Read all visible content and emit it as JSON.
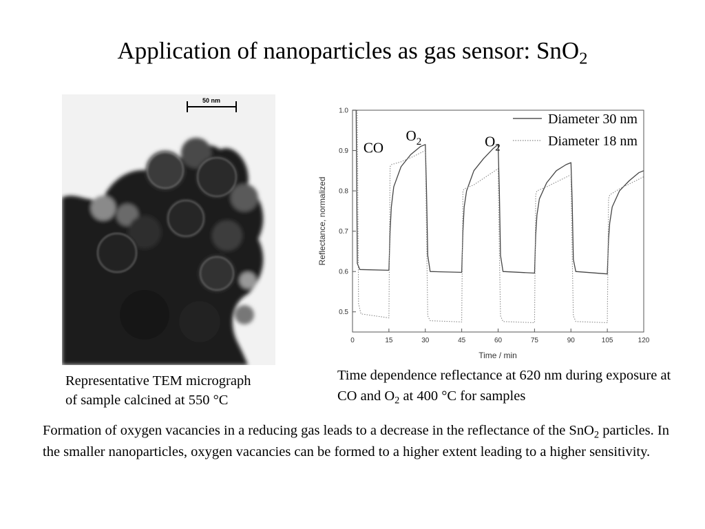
{
  "slide": {
    "title_main": "Application of nanoparticles as gas sensor: SnO",
    "title_sub": "2"
  },
  "tem": {
    "scale_label": "50 nm",
    "caption_line1": "Representative TEM micrograph",
    "caption_line2": "of sample calcined at 550 °C"
  },
  "chart_caption": {
    "part1": "Time dependence reflectance at 620 nm during exposure at CO and O",
    "sub": "2",
    "part2": " at 400 °C for samples"
  },
  "body": {
    "part1": "Formation of oxygen vacancies in a reducing gas leads to a decrease in the reflectance of the SnO",
    "sub": "2",
    "part2": " particles. In the smaller nanoparticles, oxygen vacancies can be formed to a higher extent leading to a higher sensitivity."
  },
  "chart_data": {
    "type": "line",
    "xlabel": "Time / min",
    "ylabel": "Reflectance, normalized",
    "xlim": [
      0,
      120
    ],
    "ylim": [
      0.45,
      1.0
    ],
    "xticks": [
      "0",
      "15",
      "30",
      "45",
      "60",
      "75",
      "90",
      "105",
      "120"
    ],
    "yticks": [
      "0.5",
      "0.6",
      "0.7",
      "0.8",
      "0.9",
      "1.0"
    ],
    "annotations": [
      {
        "text": "CO",
        "sub": "",
        "x": 4.5,
        "y": 0.895
      },
      {
        "text": "O",
        "sub": "2",
        "x": 22,
        "y": 0.925
      },
      {
        "text": "O",
        "sub": "2",
        "x": 54.5,
        "y": 0.91
      }
    ],
    "series": [
      {
        "name": "Diameter 30 nm",
        "style": "solid",
        "x": [
          0,
          1.5,
          2,
          3,
          15,
          15.5,
          16,
          17,
          20,
          24,
          28,
          30,
          30.5,
          31,
          32,
          45,
          45.5,
          46,
          47,
          50,
          54,
          58,
          60,
          60.5,
          61,
          62,
          75,
          75.5,
          76,
          77,
          80,
          84,
          88,
          90,
          90.5,
          91,
          92,
          105,
          105.5,
          106,
          107,
          110,
          114,
          118,
          120
        ],
        "values": [
          1.0,
          1.0,
          0.62,
          0.605,
          0.603,
          0.7,
          0.76,
          0.81,
          0.86,
          0.89,
          0.91,
          0.915,
          0.8,
          0.64,
          0.6,
          0.598,
          0.7,
          0.76,
          0.8,
          0.85,
          0.88,
          0.905,
          0.915,
          0.8,
          0.64,
          0.6,
          0.596,
          0.69,
          0.74,
          0.78,
          0.82,
          0.85,
          0.865,
          0.87,
          0.78,
          0.63,
          0.6,
          0.594,
          0.68,
          0.72,
          0.76,
          0.8,
          0.825,
          0.845,
          0.85
        ]
      },
      {
        "name": "Diameter 18 nm",
        "style": "dotted",
        "x": [
          0,
          2,
          2.5,
          3.5,
          15,
          15.5,
          16,
          20,
          25,
          30,
          30.5,
          31,
          32,
          45,
          45.5,
          46,
          50,
          55,
          60,
          60.5,
          61,
          62,
          75,
          75.5,
          76,
          80,
          85,
          90,
          90.5,
          91,
          92,
          105,
          105.5,
          106,
          110,
          115,
          120
        ],
        "values": [
          1.0,
          1.0,
          0.52,
          0.495,
          0.485,
          0.86,
          0.865,
          0.872,
          0.885,
          0.9,
          0.7,
          0.49,
          0.478,
          0.475,
          0.8,
          0.805,
          0.815,
          0.835,
          0.855,
          0.65,
          0.49,
          0.476,
          0.473,
          0.79,
          0.8,
          0.81,
          0.825,
          0.84,
          0.65,
          0.49,
          0.476,
          0.473,
          0.78,
          0.79,
          0.805,
          0.82,
          0.835
        ]
      }
    ]
  }
}
